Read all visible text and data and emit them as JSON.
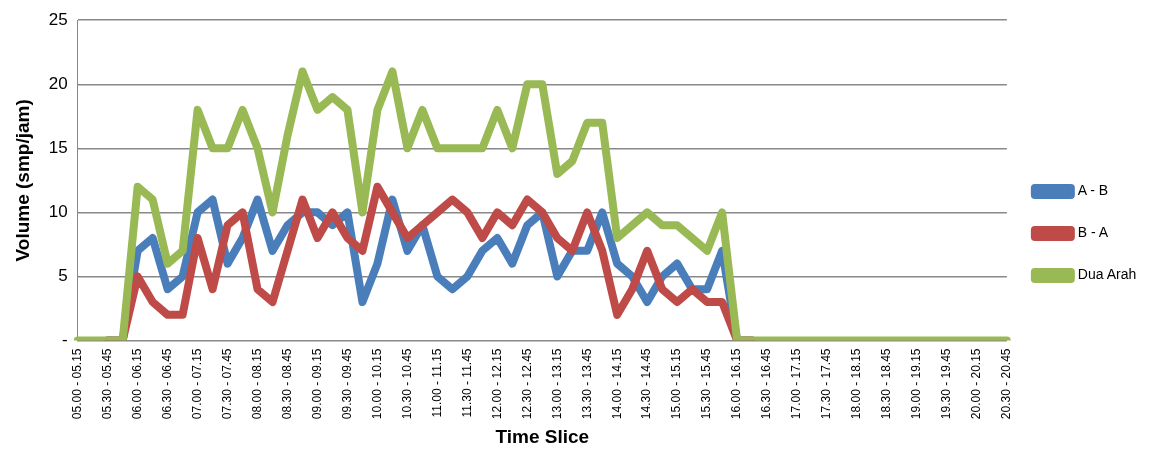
{
  "chart_data": {
    "type": "line",
    "xlabel": "Time Slice",
    "ylabel": "Volume (smp/jam)",
    "categories": [
      "05.00 - 05.15",
      null,
      "05.30 - 05.45",
      null,
      "06.00 - 06.15",
      null,
      "06.30 - 06.45",
      null,
      "07.00 - 07.15",
      null,
      "07.30 - 07.45",
      null,
      "08.00 - 08.15",
      null,
      "08.30 - 08.45",
      null,
      "09.00 - 09.15",
      null,
      "09.30 - 09.45",
      null,
      "10.00 - 10.15",
      null,
      "10.30 - 10.45",
      null,
      "11.00 - 11.15",
      null,
      "11.30 - 11.45",
      null,
      "12.00 - 12.15",
      null,
      "12.30 - 12.45",
      null,
      "13.00 - 13.15",
      null,
      "13.30 - 13.45",
      null,
      "14.00 - 14.15",
      null,
      "14.30 - 14.45",
      null,
      "15.00 - 15.15",
      null,
      "15.30 - 15.45",
      null,
      "16.00 - 16.15",
      null,
      "16.30 - 16.45",
      null,
      "17.00 - 17.15",
      null,
      "17.30 - 17.45",
      null,
      "18.00 - 18.15",
      null,
      "18.30 - 18.45",
      null,
      "19.00 - 19.15",
      null,
      "19.30 - 19.45",
      null,
      "20.00 - 20.15",
      null,
      "20.30 - 20.45"
    ],
    "series": [
      {
        "name": "A - B",
        "color": "#4a7ebb",
        "values": [
          null,
          null,
          0,
          0,
          7,
          8,
          4,
          5,
          10,
          11,
          6,
          8,
          11,
          7,
          9,
          10,
          10,
          9,
          10,
          3,
          6,
          11,
          7,
          9,
          5,
          4,
          5,
          7,
          8,
          6,
          9,
          10,
          5,
          7,
          7,
          10,
          6,
          5,
          3,
          5,
          6,
          4,
          4,
          7,
          0,
          0,
          null,
          null,
          null,
          null,
          null,
          null,
          null,
          null,
          null,
          null,
          null,
          null,
          null,
          null,
          null,
          null,
          null
        ]
      },
      {
        "name": "B - A",
        "color": "#be4b48",
        "values": [
          null,
          null,
          0,
          0,
          5,
          3,
          2,
          2,
          8,
          4,
          9,
          10,
          4,
          3,
          7,
          11,
          8,
          10,
          8,
          7,
          12,
          10,
          8,
          9,
          10,
          11,
          10,
          8,
          10,
          9,
          11,
          10,
          8,
          7,
          10,
          7,
          2,
          4,
          7,
          4,
          3,
          4,
          3,
          3,
          0,
          0,
          null,
          null,
          null,
          null,
          null,
          null,
          null,
          null,
          null,
          null,
          null,
          null,
          null,
          null,
          null,
          null,
          null
        ]
      },
      {
        "name": "Dua Arah",
        "color": "#98b954",
        "values": [
          0,
          0,
          0,
          0,
          12,
          11,
          6,
          7,
          18,
          15,
          15,
          18,
          15,
          10,
          16,
          21,
          18,
          19,
          18,
          10,
          18,
          21,
          15,
          18,
          15,
          15,
          15,
          15,
          18,
          15,
          20,
          20,
          13,
          14,
          17,
          17,
          8,
          9,
          10,
          9,
          9,
          8,
          7,
          10,
          0,
          0,
          0,
          0,
          0,
          0,
          0,
          0,
          0,
          0,
          0,
          0,
          0,
          0,
          0,
          0,
          0,
          0,
          0
        ]
      }
    ],
    "ylim": [
      0,
      25
    ],
    "yticks": [
      {
        "value": 0,
        "label": "-"
      },
      5,
      10,
      15,
      20,
      25
    ],
    "grid": "y",
    "legend": "right",
    "marker": "none",
    "line_style": "solid"
  }
}
